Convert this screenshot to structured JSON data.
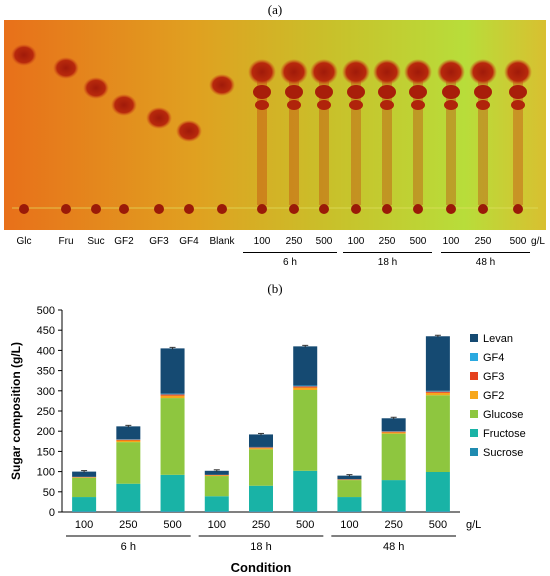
{
  "panel_a_label": "(a)",
  "panel_b_label": "(b)",
  "tlc": {
    "lanes": [
      "Glc",
      "Fru",
      "Suc",
      "GF2",
      "GF3",
      "GF4",
      "Blank",
      "100",
      "250",
      "500",
      "100",
      "250",
      "500",
      "100",
      "250",
      "500"
    ],
    "unit": "g/L",
    "groups": [
      "6 h",
      "18 h",
      "48 h"
    ]
  },
  "chart_data": {
    "type": "bar",
    "stacked": true,
    "ylabel": "Sugar composition (g/L)",
    "xlabel": "Condition",
    "ylim": [
      0,
      500
    ],
    "yticks": [
      0,
      50,
      100,
      150,
      200,
      250,
      300,
      350,
      400,
      450,
      500
    ],
    "categories": [
      "100",
      "250",
      "500",
      "100",
      "250",
      "500",
      "100",
      "250",
      "500"
    ],
    "unit_label": "g/L",
    "groups": [
      "6 h",
      "18 h",
      "48 h"
    ],
    "legend_position": "right",
    "series": [
      {
        "name": "Sucrose",
        "color": "#1f8bb0",
        "values": [
          2,
          2,
          2,
          2,
          2,
          2,
          2,
          2,
          2
        ]
      },
      {
        "name": "Fructose",
        "color": "#19b3a6",
        "values": [
          35,
          68,
          90,
          37,
          63,
          100,
          35,
          77,
          97
        ]
      },
      {
        "name": "Glucose",
        "color": "#8ec63f",
        "values": [
          48,
          103,
          190,
          50,
          90,
          200,
          42,
          115,
          190
        ]
      },
      {
        "name": "GF2",
        "color": "#f7a71c",
        "values": [
          1,
          4,
          6,
          2,
          3,
          6,
          1,
          3,
          6
        ]
      },
      {
        "name": "GF3",
        "color": "#e5401d",
        "values": [
          1,
          2,
          3,
          1,
          2,
          3,
          1,
          2,
          3
        ]
      },
      {
        "name": "GF4",
        "color": "#2aa9e0",
        "values": [
          0,
          1,
          2,
          0,
          1,
          2,
          0,
          1,
          2
        ]
      },
      {
        "name": "Levan",
        "color": "#154a72",
        "values": [
          13,
          32,
          112,
          10,
          31,
          97,
          9,
          32,
          135
        ]
      }
    ]
  }
}
